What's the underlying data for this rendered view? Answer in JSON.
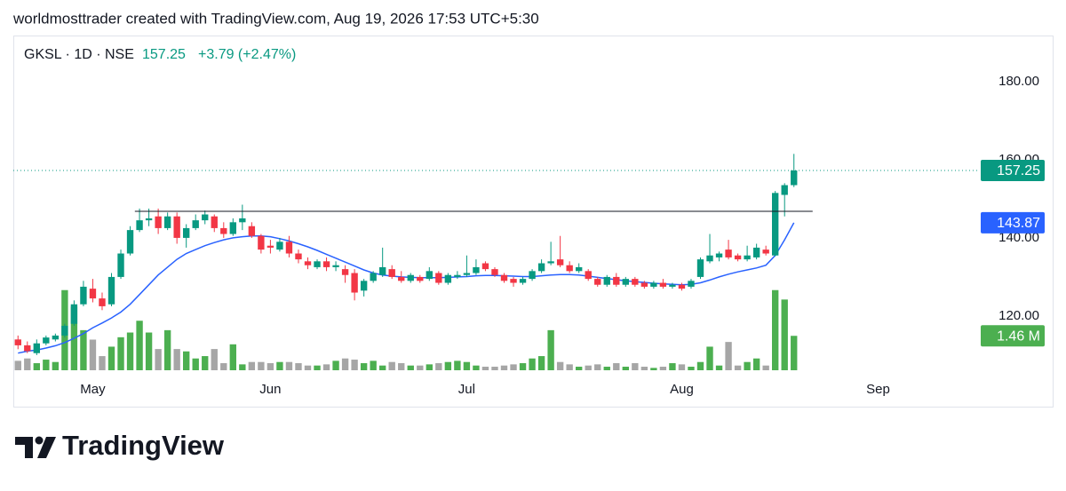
{
  "header": "worldmosttrader created with TradingView.com, Aug 19, 2026 17:53 UTC+5:30",
  "footer": {
    "logo": "TradingView"
  },
  "chart_data": {
    "type": "candlestick",
    "symbol": "GKSL · 1D · NSE",
    "change": "+3.79 (+2.47%)",
    "up_color": "#089981",
    "down_color": "#f23645",
    "xlim": [
      -0.5,
      102.6
    ],
    "xticks": [
      {
        "value": 8,
        "label": "May"
      },
      {
        "value": 27,
        "label": "Jun"
      },
      {
        "value": 48,
        "label": "Jul"
      },
      {
        "value": 71,
        "label": "Aug"
      },
      {
        "value": 92,
        "label": "Sep"
      }
    ],
    "ylim": [
      104.3,
      191.8
    ],
    "yticks": [
      {
        "value": 120,
        "label": "120.00"
      },
      {
        "value": 140,
        "label": "140.00"
      },
      {
        "value": 160,
        "label": "160.00"
      },
      {
        "value": 180,
        "label": "180.00"
      }
    ],
    "open": [
      114,
      112.5,
      110.5,
      113,
      114,
      115,
      118,
      123,
      127,
      124.5,
      123,
      130,
      136,
      142,
      144.5,
      145.5,
      142.5,
      145.5,
      140,
      142.5,
      144.5,
      145.5,
      142.5,
      141,
      144,
      143,
      140.5,
      138,
      137,
      139,
      136,
      134,
      132.5,
      134,
      132.5,
      132,
      131,
      126.5,
      129,
      130.5,
      132,
      130,
      129,
      130,
      129.5,
      131,
      128.5,
      130,
      130.5,
      131,
      133.5,
      132,
      130.5,
      129.5,
      128.5,
      129.5,
      131.5,
      133.5,
      134.5,
      133,
      131.5,
      131.5,
      129.5,
      128,
      130,
      128,
      129.5,
      128.5,
      127.5,
      128.5,
      127.5,
      128,
      127.5,
      130,
      134,
      135,
      137,
      135.5,
      134.5,
      135,
      137,
      135.5,
      151,
      153.5
    ],
    "high": [
      115,
      113.5,
      114,
      115,
      115.5,
      118,
      124,
      129,
      129.5,
      126,
      131,
      137,
      143,
      147.5,
      147.5,
      147.5,
      146.5,
      146.5,
      143.5,
      146,
      147,
      146,
      144,
      145,
      148.5,
      144,
      141,
      139.5,
      140,
      140.5,
      137,
      135,
      134.5,
      135,
      134,
      133,
      132,
      129.5,
      131.5,
      137.5,
      133,
      131.5,
      131,
      130.5,
      132.5,
      131.5,
      131,
      131.5,
      135.5,
      134.5,
      134,
      132.5,
      131,
      130,
      130,
      132,
      134.5,
      139,
      140.5,
      134,
      133.5,
      132,
      130,
      130.5,
      131,
      130,
      130,
      129,
      129,
      129.5,
      128.5,
      128.5,
      129.5,
      135,
      141,
      136.5,
      139.5,
      136,
      138,
      138.5,
      138,
      152,
      154,
      161.5
    ],
    "low": [
      111.5,
      110.5,
      110,
      112.5,
      113.5,
      114.5,
      117.5,
      122.5,
      123.5,
      121.5,
      122.5,
      129.5,
      135.5,
      141.5,
      143,
      141,
      142,
      138.5,
      137.5,
      142,
      143.5,
      141.5,
      140,
      140.5,
      142,
      140,
      136,
      136,
      136.5,
      135,
      133.5,
      132,
      132,
      131.5,
      131.5,
      128.5,
      124,
      125,
      128.5,
      130,
      129.5,
      128.5,
      128.5,
      128.5,
      129,
      128,
      128,
      129.5,
      130,
      130.5,
      131.5,
      130,
      128.5,
      127.5,
      128,
      129,
      131,
      133,
      132.5,
      131,
      131,
      129,
      127.5,
      127.5,
      127.5,
      127.5,
      127.5,
      127,
      127,
      127,
      127,
      126.5,
      127,
      129.5,
      133.5,
      134,
      134.5,
      134,
      134,
      134.5,
      135.5,
      135.3,
      145.5,
      153
    ],
    "close": [
      112.5,
      111,
      113,
      114.5,
      115,
      117.5,
      123,
      127.5,
      124.5,
      122.5,
      130,
      136,
      142,
      144.5,
      145,
      142.5,
      145.5,
      140,
      142.5,
      144.5,
      146,
      142.5,
      141,
      144,
      145,
      140.5,
      137,
      137.5,
      139,
      136,
      134.5,
      133,
      134,
      132.5,
      133,
      130.5,
      126,
      129,
      131,
      132.5,
      130,
      129,
      130.5,
      129,
      131.5,
      128.5,
      130.5,
      130.5,
      131,
      132.5,
      132,
      130.5,
      129,
      128.5,
      129.5,
      131.5,
      133.5,
      134,
      133,
      131.5,
      132.5,
      129.5,
      128,
      130,
      128,
      129.5,
      128,
      127.5,
      128.5,
      127.5,
      128,
      127,
      129,
      134.5,
      135.5,
      136,
      135,
      134.5,
      135.5,
      137.5,
      136,
      151.5,
      153.5,
      157.25
    ],
    "ma": {
      "color": "#2962ff",
      "values": [
        110.5,
        111,
        111.3,
        111.8,
        112.4,
        113.2,
        114.3,
        115.5,
        117,
        118.2,
        119.5,
        121,
        123,
        125.5,
        128,
        130.5,
        132.5,
        134.5,
        136,
        137,
        138,
        138.8,
        139.5,
        140,
        140.3,
        140.5,
        140.5,
        140.3,
        139.8,
        139.2,
        138.5,
        137.7,
        136.8,
        135.8,
        134.8,
        133.8,
        132.8,
        131.8,
        131,
        130.5,
        130.2,
        130,
        129.9,
        129.8,
        129.8,
        129.8,
        129.9,
        130,
        130.1,
        130.3,
        130.4,
        130.4,
        130.3,
        130.2,
        130.1,
        130.1,
        130.3,
        130.5,
        130.6,
        130.6,
        130.5,
        130.2,
        129.9,
        129.6,
        129.3,
        129,
        128.8,
        128.6,
        128.4,
        128.2,
        128.1,
        128,
        128.1,
        128.5,
        129.2,
        130,
        130.7,
        131.3,
        131.8,
        132.3,
        133,
        135.5,
        139.5,
        143.87
      ]
    },
    "volume": {
      "up_color": "#4caf50",
      "down_color": "#a6a6a6",
      "ylim": [
        0,
        14.2
      ],
      "last_label": "1.46 M",
      "values": [
        0.4,
        0.5,
        0.3,
        0.45,
        0.35,
        3.4,
        2.7,
        1.7,
        1.3,
        0.6,
        1.0,
        1.4,
        1.6,
        2.1,
        1.6,
        0.9,
        1.7,
        0.9,
        0.8,
        0.5,
        0.6,
        0.9,
        0.3,
        1.1,
        0.25,
        0.35,
        0.35,
        0.3,
        0.35,
        0.35,
        0.3,
        0.2,
        0.2,
        0.25,
        0.4,
        0.5,
        0.45,
        0.3,
        0.4,
        0.2,
        0.35,
        0.3,
        0.2,
        0.2,
        0.25,
        0.3,
        0.35,
        0.4,
        0.35,
        0.2,
        0.15,
        0.15,
        0.2,
        0.25,
        0.3,
        0.5,
        0.6,
        1.7,
        0.35,
        0.25,
        0.15,
        0.2,
        0.25,
        0.15,
        0.3,
        0.15,
        0.3,
        0.15,
        0.1,
        0.15,
        0.3,
        0.25,
        0.15,
        0.35,
        1.0,
        0.2,
        1.2,
        0.2,
        0.35,
        0.5,
        0.2,
        3.4,
        3.0,
        1.46
      ]
    },
    "level_line": {
      "value": 146.8,
      "from": 12.5,
      "to": 85
    }
  }
}
